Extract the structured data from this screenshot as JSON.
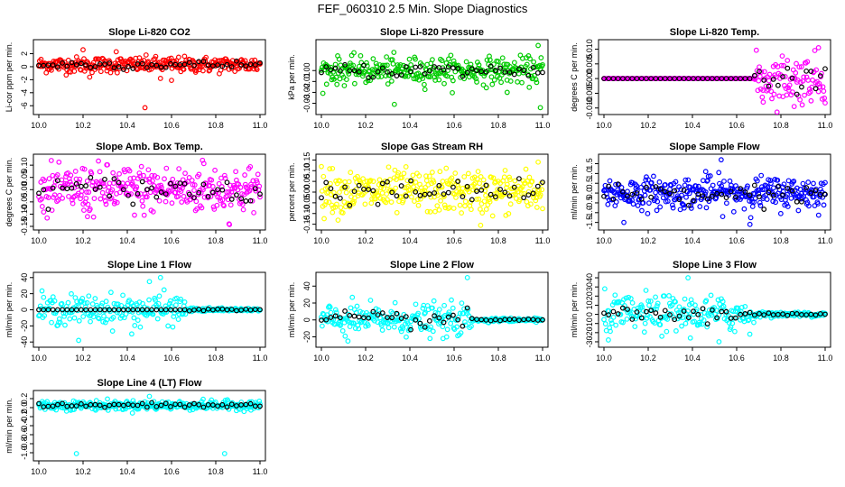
{
  "title": "FEF_060310  2.5 Min. Slope Diagnostics",
  "colors": {
    "overlay": "#000000",
    "axis": "#000000"
  },
  "chart_data": [
    {
      "type": "scatter",
      "title": "Slope Li-820 CO2",
      "ylabel": "Li-cor ppm per min.",
      "xlim": [
        10.0,
        11.0
      ],
      "ylim": [
        -6.8,
        3.6
      ],
      "xticks": [
        "10.0",
        "10.2",
        "10.4",
        "10.6",
        "10.8",
        "11.0"
      ],
      "yticks": [
        -6,
        -4,
        -2,
        0,
        2
      ],
      "ytick_labels": [
        "-6",
        "-4",
        "-2",
        "0",
        "2"
      ],
      "series_color": "#ff0000",
      "center": 0.3,
      "spread": 0.6,
      "n": 300,
      "outliers": [
        [
          10.48,
          -6.3
        ],
        [
          10.23,
          -1.6
        ],
        [
          10.55,
          -1.8
        ],
        [
          10.6,
          -2.1
        ],
        [
          10.2,
          2.6
        ],
        [
          10.35,
          2.3
        ]
      ]
    },
    {
      "type": "scatter",
      "title": "Slope Li-820 Pressure",
      "ylabel": "kPa per min.",
      "xlim": [
        10.0,
        11.0
      ],
      "ylim": [
        -0.037,
        0.025
      ],
      "xticks": [
        "10.0",
        "10.2",
        "10.4",
        "10.6",
        "10.8",
        "11.0"
      ],
      "yticks": [
        -0.03,
        -0.02,
        -0.01,
        0.0
      ],
      "ytick_labels": [
        "-0.03",
        "-0.02",
        "-0.01",
        "0.00"
      ],
      "series_color": "#00cc00",
      "center": 0.0,
      "spread": 0.006,
      "n": 300,
      "outliers": [
        [
          10.99,
          -0.034
        ],
        [
          10.33,
          -0.031
        ],
        [
          10.98,
          0.023
        ],
        [
          10.84,
          -0.02
        ]
      ]
    },
    {
      "type": "scatter",
      "title": "Slope Li-820 Temp.",
      "ylabel": "degrees C per min.",
      "xlim": [
        10.0,
        11.0
      ],
      "ylim": [
        -0.011,
        0.012
      ],
      "xticks": [
        "10.0",
        "10.2",
        "10.4",
        "10.6",
        "10.8",
        "11.0"
      ],
      "yticks": [
        -0.01,
        -0.005,
        0.0,
        0.005,
        0.01
      ],
      "ytick_labels": [
        "-0.010",
        "-0.005",
        "0.000",
        "0.005",
        "0.010"
      ],
      "series_color": "#ff00ff",
      "center": 0.0,
      "spread": 0.004,
      "n": 300,
      "flat_until": 10.68,
      "outliers": [
        [
          10.86,
          -0.0095
        ],
        [
          10.97,
          0.0105
        ],
        [
          10.72,
          -0.008
        ]
      ]
    },
    {
      "type": "scatter",
      "title": "Slope Amb. Box Temp.",
      "ylabel": "degrees C per min.",
      "xlim": [
        10.0,
        11.0
      ],
      "ylim": [
        -0.15,
        0.13
      ],
      "xticks": [
        "10.0",
        "10.2",
        "10.4",
        "10.6",
        "10.8",
        "11.0"
      ],
      "yticks": [
        -0.15,
        -0.1,
        -0.05,
        0.0,
        0.05,
        0.1
      ],
      "ytick_labels": [
        "-0.15",
        "-0.10",
        "-0.05",
        "0.00",
        "0.05",
        "0.10"
      ],
      "series_color": "#ff00ff",
      "center": 0.0,
      "spread": 0.05,
      "n": 320,
      "outliers": [
        [
          10.86,
          -0.14
        ],
        [
          10.74,
          0.12
        ],
        [
          10.22,
          -0.11
        ]
      ]
    },
    {
      "type": "scatter",
      "title": "Slope Gas Stream RH",
      "ylabel": "percent per min.",
      "xlim": [
        10.0,
        11.0
      ],
      "ylim": [
        -0.16,
        0.16
      ],
      "xticks": [
        "10.0",
        "10.2",
        "10.4",
        "10.6",
        "10.8",
        "11.0"
      ],
      "yticks": [
        -0.15,
        -0.1,
        -0.05,
        0.0,
        0.05,
        0.1,
        0.15
      ],
      "ytick_labels": [
        "-0.15",
        "-0.10",
        "-0.05",
        "0.00",
        "0.05",
        "0.10",
        "0.15"
      ],
      "series_color": "#ffff00",
      "center": 0.0,
      "spread": 0.05,
      "n": 320,
      "outliers": [
        [
          10.72,
          -0.155
        ],
        [
          10.98,
          0.14
        ],
        [
          10.05,
          0.11
        ]
      ]
    },
    {
      "type": "scatter",
      "title": "Slope Sample Flow",
      "ylabel": "ml/min per min.",
      "xlim": [
        10.0,
        11.0
      ],
      "ylim": [
        -1.7,
        1.8
      ],
      "xticks": [
        "10.0",
        "10.2",
        "10.4",
        "10.6",
        "10.8",
        "11.0"
      ],
      "yticks": [
        -1.5,
        -1.0,
        -0.5,
        0.0,
        0.5,
        1.0,
        1.5
      ],
      "ytick_labels": [
        "-1.5",
        "-1.0",
        "-0.5",
        "0.0",
        "0.5",
        "1.0",
        "1.5"
      ],
      "series_color": "#0000ff",
      "center": 0.0,
      "spread": 0.4,
      "n": 340,
      "outliers": [
        [
          10.53,
          1.7
        ],
        [
          10.66,
          -1.6
        ],
        [
          10.09,
          -1.5
        ],
        [
          10.46,
          1.1
        ]
      ]
    },
    {
      "type": "scatter",
      "title": "Slope Line 1 Flow",
      "ylabel": "ml/min per min.",
      "xlim": [
        10.0,
        11.0
      ],
      "ylim": [
        -42,
        42
      ],
      "xticks": [
        "10.0",
        "10.2",
        "10.4",
        "10.6",
        "10.8",
        "11.0"
      ],
      "yticks": [
        -40,
        -20,
        0,
        20,
        40
      ],
      "ytick_labels": [
        "-40",
        "-20",
        "0",
        "20",
        "40"
      ],
      "series_color": "#00ffff",
      "center": 0.0,
      "spread": 9,
      "n": 280,
      "flat_after": 10.67,
      "overlay_flat": true,
      "outliers": [
        [
          10.18,
          -38
        ],
        [
          10.55,
          40
        ],
        [
          10.5,
          35
        ],
        [
          10.42,
          -30
        ]
      ]
    },
    {
      "type": "scatter",
      "title": "Slope Line 2 Flow",
      "ylabel": "ml/min per min.",
      "xlim": [
        10.0,
        11.0
      ],
      "ylim": [
        -28,
        52
      ],
      "xticks": [
        "10.0",
        "10.2",
        "10.4",
        "10.6",
        "10.8",
        "11.0"
      ],
      "yticks": [
        -20,
        0,
        20,
        40
      ],
      "ytick_labels": [
        "-20",
        "0",
        "20",
        "40"
      ],
      "series_color": "#00ffff",
      "center": 0.0,
      "spread": 9,
      "n": 280,
      "flat_after": 10.68,
      "outliers": [
        [
          10.66,
          50
        ],
        [
          10.12,
          -25
        ],
        [
          10.55,
          -22
        ]
      ]
    },
    {
      "type": "scatter",
      "title": "Slope Line 3 Flow",
      "ylabel": "ml/min per min.",
      "xlim": [
        10.0,
        11.0
      ],
      "ylim": [
        -32,
        42
      ],
      "xticks": [
        "10.0",
        "10.2",
        "10.4",
        "10.6",
        "10.8",
        "11.0"
      ],
      "yticks": [
        -30,
        -20,
        -10,
        0,
        10,
        20,
        30,
        40
      ],
      "ytick_labels": [
        "-30",
        "-20",
        "-10",
        "0",
        "10",
        "20",
        "30",
        "40"
      ],
      "series_color": "#00ffff",
      "center": 0.0,
      "spread": 10,
      "n": 280,
      "flat_after": 10.68,
      "outliers": [
        [
          10.38,
          40
        ],
        [
          10.52,
          -30
        ],
        [
          10.02,
          -28
        ]
      ]
    },
    {
      "type": "scatter",
      "title": "Slope Line 4 (LT) Flow",
      "ylabel": "ml/min per min.",
      "xlim": [
        10.0,
        11.0
      ],
      "ylim": [
        -1.1,
        0.3
      ],
      "xticks": [
        "10.0",
        "10.2",
        "10.4",
        "10.6",
        "10.8",
        "11.0"
      ],
      "yticks": [
        -1.0,
        -0.8,
        -0.6,
        -0.4,
        -0.2,
        0.0,
        0.2
      ],
      "ytick_labels": [
        "-1.0",
        "-0.8",
        "-0.6",
        "-0.4",
        "-0.2",
        "0.0",
        "0.2"
      ],
      "series_color": "#00ffff",
      "center": 0.05,
      "spread": 0.05,
      "n": 320,
      "outliers": [
        [
          10.17,
          -1.02
        ],
        [
          10.84,
          -1.02
        ],
        [
          10.5,
          0.25
        ]
      ]
    }
  ]
}
